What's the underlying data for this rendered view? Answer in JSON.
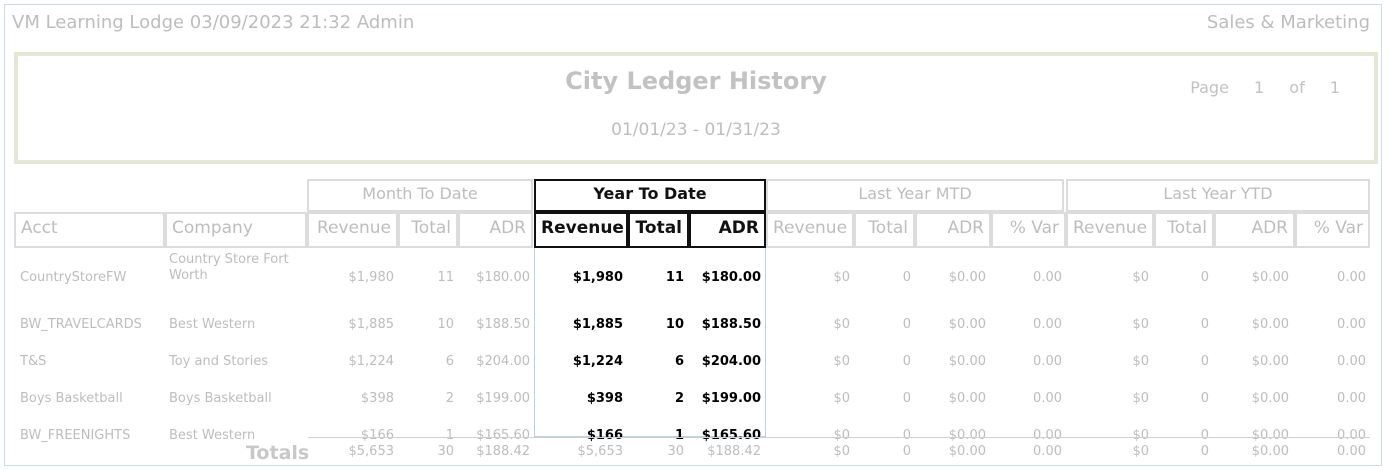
{
  "header": {
    "left_text": "VM Learning Lodge 03/09/2023 21:32  Admin",
    "right_text": "Sales & Marketing"
  },
  "report": {
    "title": "City Ledger History",
    "date_range": "01/01/23 - 01/31/23",
    "page_label": "Page",
    "page_current": "1",
    "page_of": "of",
    "page_total": "1"
  },
  "groups": {
    "mtd": "Month To Date",
    "ytd": "Year To Date",
    "ly_mtd": "Last Year MTD",
    "ly_ytd": "Last Year YTD"
  },
  "columns": {
    "acct": "Acct",
    "company": "Company",
    "revenue": "Revenue",
    "total": "Total",
    "adr": "ADR",
    "pct_var": "% Var"
  },
  "rows": [
    {
      "acct": "CountryStoreFW",
      "company": "Country Store Fort Worth",
      "mtd": [
        "$1,980",
        "11",
        "$180.00"
      ],
      "ytd": [
        "$1,980",
        "11",
        "$180.00"
      ],
      "ly_mtd": [
        "$0",
        "0",
        "$0.00",
        "0.00"
      ],
      "ly_ytd": [
        "$0",
        "0",
        "$0.00",
        "0.00"
      ]
    },
    {
      "acct": "BW_TRAVELCARDS",
      "company": "Best Western",
      "mtd": [
        "$1,885",
        "10",
        "$188.50"
      ],
      "ytd": [
        "$1,885",
        "10",
        "$188.50"
      ],
      "ly_mtd": [
        "$0",
        "0",
        "$0.00",
        "0.00"
      ],
      "ly_ytd": [
        "$0",
        "0",
        "$0.00",
        "0.00"
      ]
    },
    {
      "acct": "T&S",
      "company": "Toy and Stories",
      "mtd": [
        "$1,224",
        "6",
        "$204.00"
      ],
      "ytd": [
        "$1,224",
        "6",
        "$204.00"
      ],
      "ly_mtd": [
        "$0",
        "0",
        "$0.00",
        "0.00"
      ],
      "ly_ytd": [
        "$0",
        "0",
        "$0.00",
        "0.00"
      ]
    },
    {
      "acct": "Boys Basketball",
      "company": "Boys Basketball",
      "mtd": [
        "$398",
        "2",
        "$199.00"
      ],
      "ytd": [
        "$398",
        "2",
        "$199.00"
      ],
      "ly_mtd": [
        "$0",
        "0",
        "$0.00",
        "0.00"
      ],
      "ly_ytd": [
        "$0",
        "0",
        "$0.00",
        "0.00"
      ]
    },
    {
      "acct": "BW_FREENIGHTS",
      "company": "Best Western",
      "mtd": [
        "$166",
        "1",
        "$165.60"
      ],
      "ytd": [
        "$166",
        "1",
        "$165.60"
      ],
      "ly_mtd": [
        "$0",
        "0",
        "$0.00",
        "0.00"
      ],
      "ly_ytd": [
        "$0",
        "0",
        "$0.00",
        "0.00"
      ]
    }
  ],
  "totals": {
    "label": "Totals",
    "mtd": [
      "$5,653",
      "30",
      "$188.42"
    ],
    "ytd": [
      "$5,653",
      "30",
      "$188.42"
    ],
    "ly_mtd": [
      "$0",
      "0",
      "$0.00",
      "0.00"
    ],
    "ly_ytd": [
      "$0",
      "0",
      "$0.00",
      "0.00"
    ]
  }
}
